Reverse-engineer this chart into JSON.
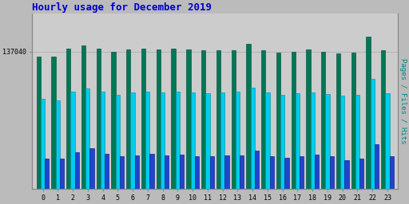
{
  "title": "Hourly usage for December 2019",
  "title_color": "#0000cc",
  "title_fontsize": 9,
  "ylabel_right": "Pages / Files / Hits",
  "ylabel_right_color": "#008888",
  "background_color": "#bbbbbb",
  "plot_bg_color": "#cccccc",
  "hours": [
    0,
    1,
    2,
    3,
    4,
    5,
    6,
    7,
    8,
    9,
    10,
    11,
    12,
    13,
    14,
    15,
    16,
    17,
    18,
    19,
    20,
    21,
    22,
    23
  ],
  "ylim": [
    0,
    175000
  ],
  "yticks": [
    137040
  ],
  "ytick_label": "137040",
  "hits": [
    132000,
    132000,
    140000,
    143000,
    140000,
    137000,
    139000,
    140000,
    139000,
    139500,
    139000,
    138000,
    138500,
    138500,
    145000,
    138500,
    136000,
    137000,
    139000,
    137000,
    135000,
    136000,
    152000,
    138000
  ],
  "files": [
    90000,
    88000,
    97000,
    100000,
    97000,
    94000,
    96000,
    97000,
    96000,
    96500,
    96000,
    95500,
    96000,
    96500,
    101000,
    96000,
    94000,
    95000,
    96000,
    94500,
    93000,
    94000,
    110000,
    95500
  ],
  "pages": [
    30000,
    30000,
    36000,
    40000,
    35000,
    32000,
    33000,
    35000,
    33000,
    34000,
    32000,
    32000,
    33000,
    33000,
    38000,
    32000,
    31000,
    32000,
    34000,
    32000,
    28000,
    30000,
    44000,
    32000
  ],
  "hits_color": "#007755",
  "files_color": "#00ccee",
  "pages_color": "#2244cc",
  "bar_width": 0.28,
  "grid_color": "#aaaaaa",
  "border_color": "#888888",
  "font_family": "monospace"
}
